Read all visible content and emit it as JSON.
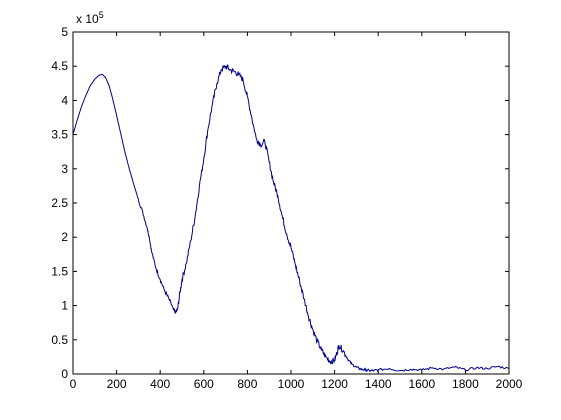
{
  "chart_data": {
    "type": "line",
    "title": "",
    "xlabel": "",
    "ylabel": "",
    "xlim": [
      0,
      2000
    ],
    "ylim": [
      0,
      5
    ],
    "y_multiplier_label": {
      "base": "x 10",
      "exponent": "5"
    },
    "x_ticks": [
      0,
      200,
      400,
      600,
      800,
      1000,
      1200,
      1400,
      1600,
      1800,
      2000
    ],
    "x_tick_labels": [
      "0",
      "200",
      "400",
      "600",
      "800",
      "1000",
      "1200",
      "1400",
      "1600",
      "1800",
      "2000"
    ],
    "y_ticks": [
      0,
      0.5,
      1,
      1.5,
      2,
      2.5,
      3,
      3.5,
      4,
      4.5,
      5
    ],
    "y_tick_labels": [
      "0",
      "0.5",
      "1",
      "1.5",
      "2",
      "2.5",
      "3",
      "3.5",
      "4",
      "4.5",
      "5"
    ],
    "grid": false,
    "legend": false,
    "series": [
      {
        "color": "#00008b",
        "x": [
          0,
          20,
          40,
          60,
          80,
          100,
          120,
          135,
          150,
          165,
          180,
          200,
          220,
          240,
          260,
          280,
          300,
          320,
          340,
          350,
          360,
          380,
          400,
          420,
          440,
          460,
          470,
          480,
          490,
          500,
          520,
          540,
          560,
          580,
          600,
          620,
          640,
          660,
          680,
          700,
          720,
          740,
          760,
          780,
          800,
          820,
          840,
          860,
          880,
          900,
          920,
          940,
          960,
          980,
          1000,
          1020,
          1040,
          1060,
          1080,
          1100,
          1120,
          1140,
          1160,
          1180,
          1200,
          1210,
          1220,
          1240,
          1260,
          1280,
          1300,
          1320,
          1340,
          1360,
          1380,
          1400,
          1450,
          1500,
          1550,
          1600,
          1650,
          1700,
          1750,
          1800,
          1850,
          1900,
          1950,
          2000
        ],
        "y": [
          3.5,
          3.72,
          3.92,
          4.08,
          4.22,
          4.31,
          4.37,
          4.38,
          4.33,
          4.22,
          4.05,
          3.78,
          3.5,
          3.22,
          2.98,
          2.76,
          2.55,
          2.36,
          2.14,
          2.0,
          1.8,
          1.55,
          1.38,
          1.22,
          1.1,
          0.95,
          0.9,
          0.95,
          1.18,
          1.38,
          1.62,
          1.95,
          2.3,
          2.75,
          3.15,
          3.6,
          3.95,
          4.25,
          4.45,
          4.5,
          4.45,
          4.42,
          4.38,
          4.3,
          4.05,
          3.75,
          3.45,
          3.35,
          3.4,
          3.1,
          2.8,
          2.6,
          2.3,
          2.05,
          1.85,
          1.6,
          1.35,
          1.1,
          0.85,
          0.65,
          0.48,
          0.35,
          0.25,
          0.18,
          0.2,
          0.3,
          0.42,
          0.34,
          0.22,
          0.14,
          0.1,
          0.07,
          0.06,
          0.05,
          0.05,
          0.06,
          0.08,
          0.05,
          0.07,
          0.06,
          0.09,
          0.07,
          0.1,
          0.06,
          0.09,
          0.08,
          0.11,
          0.08
        ]
      }
    ]
  }
}
